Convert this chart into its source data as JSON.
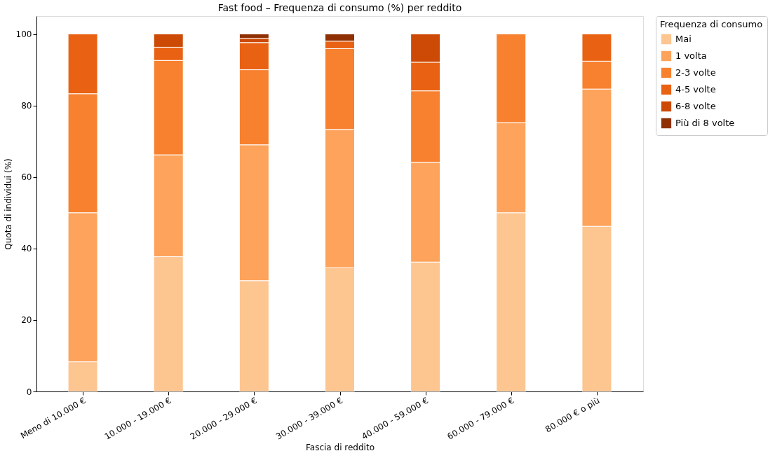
{
  "chart_data": {
    "type": "bar",
    "title": "Fast food – Frequenza di consumo (%) per reddito",
    "xlabel": "Fascia di reddito",
    "ylabel": "Quota di individui (%)",
    "legend_title": "Frequenza di consumo",
    "categories": [
      "Meno di 10.000 €",
      "10.000 - 19.000 €",
      "20.000 - 29.000 €",
      "30.000 - 39.000 €",
      "40.000 - 59.000 €",
      "60.000 - 79.000 €",
      "80.000 € o più"
    ],
    "stacked": true,
    "ylim": [
      0,
      105
    ],
    "yticks": [
      0,
      20,
      40,
      60,
      80,
      100
    ],
    "grid": false,
    "legend": "top right",
    "series": [
      {
        "name": "Mai",
        "color": "#fdc590",
        "values": [
          8.3,
          37.7,
          31.0,
          34.6,
          36.2,
          50.0,
          46.2
        ]
      },
      {
        "name": "1 volta",
        "color": "#fda35c",
        "values": [
          41.7,
          28.5,
          38.0,
          38.7,
          27.9,
          25.2,
          38.4
        ]
      },
      {
        "name": "2-3 volte",
        "color": "#f7812f",
        "values": [
          33.3,
          26.4,
          21.0,
          22.6,
          20.0,
          24.8,
          7.8
        ]
      },
      {
        "name": "4-5 volte",
        "color": "#e96213",
        "values": [
          16.7,
          3.7,
          7.6,
          2.1,
          8.0,
          0,
          7.6
        ]
      },
      {
        "name": "6-8 volte",
        "color": "#cc4a05",
        "values": [
          0,
          3.7,
          1.2,
          0,
          7.9,
          0,
          0
        ]
      },
      {
        "name": "Più di 8 volte",
        "color": "#8f3004",
        "values": [
          0,
          0,
          1.2,
          2.0,
          0,
          0,
          0
        ]
      }
    ]
  }
}
